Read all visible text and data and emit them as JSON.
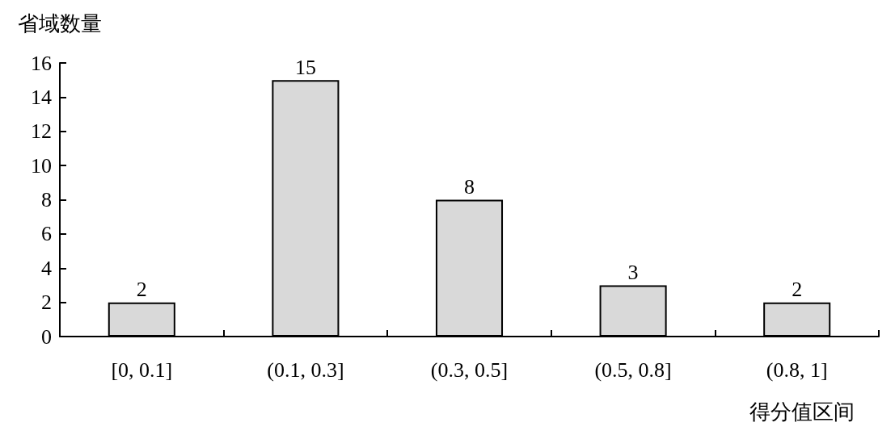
{
  "chart_data": {
    "type": "bar",
    "xlabel": "得分值区间",
    "ylabel": "省域数量",
    "categories": [
      "[0, 0.1]",
      "(0.1, 0.3]",
      "(0.3, 0.5]",
      "(0.5, 0.8]",
      "(0.8, 1]"
    ],
    "values": [
      2,
      15,
      8,
      3,
      2
    ],
    "color": "#d9d9d9",
    "ylim": [
      0,
      16
    ],
    "yticks": [
      0,
      2,
      4,
      6,
      8,
      10,
      12,
      14,
      16
    ],
    "data_labels": true,
    "grid": false
  }
}
